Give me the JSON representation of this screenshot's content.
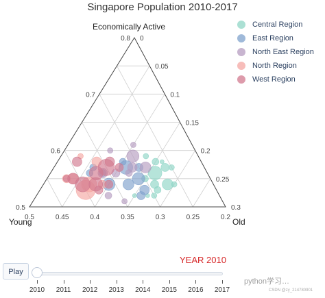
{
  "chart_data": {
    "type": "ternary-scatter",
    "title": "Singapore Population 2010-2017",
    "axis_a_title": "Economically Active",
    "axis_b_title": "Young",
    "axis_c_title": "Old",
    "axis_a_ticks": [
      "0.5",
      "0.6",
      "0.7",
      "0.8"
    ],
    "axis_b_ticks": [
      "0.5",
      "0.45",
      "0.4",
      "0.35",
      "0.3",
      "0.25",
      "0.2"
    ],
    "axis_c_ticks": [
      "0",
      "0.05",
      "0.1",
      "0.15",
      "0.2",
      "0.25",
      "0.3"
    ],
    "axis_ranges": {
      "economically_active": [
        0.5,
        0.8
      ],
      "young": [
        0.2,
        0.5
      ],
      "old": [
        0,
        0.3
      ]
    },
    "grid": true,
    "legend_position": "top-right",
    "series": [
      {
        "name": "Central Region",
        "color": "#8fd5c6",
        "points": [
          {
            "b": 0.28,
            "c": 0.16,
            "size": 10
          },
          {
            "b": 0.27,
            "c": 0.19,
            "size": 8
          },
          {
            "b": 0.29,
            "c": 0.17,
            "size": 6
          },
          {
            "b": 0.26,
            "c": 0.17,
            "size": 6
          },
          {
            "b": 0.3,
            "c": 0.15,
            "size": 5
          },
          {
            "b": 0.27,
            "c": 0.15,
            "size": 5
          },
          {
            "b": 0.28,
            "c": 0.13,
            "size": 4
          },
          {
            "b": 0.25,
            "c": 0.18,
            "size": 4
          },
          {
            "b": 0.29,
            "c": 0.18,
            "size": 5
          },
          {
            "b": 0.26,
            "c": 0.2,
            "size": 4
          },
          {
            "b": 0.3,
            "c": 0.18,
            "size": 4
          },
          {
            "b": 0.33,
            "c": 0.15,
            "size": 3
          },
          {
            "b": 0.26,
            "c": 0.16,
            "size": 3
          },
          {
            "b": 0.31,
            "c": 0.17,
            "size": 3
          }
        ]
      },
      {
        "name": "East Region",
        "color": "#7fa1cc",
        "points": [
          {
            "b": 0.32,
            "c": 0.11,
            "size": 10
          },
          {
            "b": 0.31,
            "c": 0.14,
            "size": 9
          },
          {
            "b": 0.36,
            "c": 0.1,
            "size": 9
          },
          {
            "b": 0.33,
            "c": 0.13,
            "size": 8
          },
          {
            "b": 0.31,
            "c": 0.16,
            "size": 7
          },
          {
            "b": 0.3,
            "c": 0.13,
            "size": 6
          },
          {
            "b": 0.32,
            "c": 0.16,
            "size": 6
          },
          {
            "b": 0.37,
            "c": 0.06,
            "size": 5
          },
          {
            "b": 0.38,
            "c": 0.06,
            "size": 5
          },
          {
            "b": 0.32,
            "c": 0.1,
            "size": 5
          },
          {
            "b": 0.36,
            "c": 0.08,
            "size": 5
          }
        ]
      },
      {
        "name": "North East Region",
        "color": "#b59cc0",
        "points": [
          {
            "b": 0.3,
            "c": 0.11,
            "size": 9
          },
          {
            "b": 0.29,
            "c": 0.14,
            "size": 8
          },
          {
            "b": 0.36,
            "c": 0.08,
            "size": 7
          },
          {
            "b": 0.31,
            "c": 0.12,
            "size": 7
          },
          {
            "b": 0.34,
            "c": 0.1,
            "size": 6
          },
          {
            "b": 0.37,
            "c": 0.11,
            "size": 5
          },
          {
            "b": 0.32,
            "c": 0.12,
            "size": 5
          },
          {
            "b": 0.35,
            "c": 0.14,
            "size": 4
          },
          {
            "b": 0.29,
            "c": 0.1,
            "size": 4
          },
          {
            "b": 0.33,
            "c": 0.07,
            "size": 4
          }
        ]
      },
      {
        "name": "North Region",
        "color": "#f4a7a3",
        "points": [
          {
            "b": 0.4,
            "c": 0.07,
            "size": 14
          },
          {
            "b": 0.39,
            "c": 0.07,
            "size": 11
          },
          {
            "b": 0.41,
            "c": 0.04,
            "size": 8
          },
          {
            "b": 0.36,
            "c": 0.06,
            "size": 7
          },
          {
            "b": 0.42,
            "c": 0.03,
            "size": 6
          },
          {
            "b": 0.37,
            "c": 0.09,
            "size": 6
          },
          {
            "b": 0.38,
            "c": 0.03,
            "size": 4
          }
        ]
      },
      {
        "name": "West Region",
        "color": "#d17a8f",
        "points": [
          {
            "b": 0.35,
            "c": 0.08,
            "size": 12
          },
          {
            "b": 0.37,
            "c": 0.07,
            "size": 10
          },
          {
            "b": 0.38,
            "c": 0.08,
            "size": 10
          },
          {
            "b": 0.4,
            "c": 0.06,
            "size": 11
          },
          {
            "b": 0.41,
            "c": 0.04,
            "size": 8
          },
          {
            "b": 0.39,
            "c": 0.03,
            "size": 7
          },
          {
            "b": 0.34,
            "c": 0.08,
            "size": 7
          },
          {
            "b": 0.36,
            "c": 0.1,
            "size": 6
          },
          {
            "b": 0.33,
            "c": 0.1,
            "size": 6
          },
          {
            "b": 0.38,
            "c": 0.09,
            "size": 6
          },
          {
            "b": 0.42,
            "c": 0.03,
            "size": 5
          }
        ]
      }
    ]
  },
  "animation": {
    "year_label": "YEAR 2010",
    "play_label": "Play",
    "slider_steps": [
      "2010",
      "2011",
      "2012",
      "2013",
      "2014",
      "2015",
      "2016",
      "2017"
    ],
    "current_step": 0
  },
  "watermark": {
    "text": "python学习…",
    "subtext": "CSDN @zy_214780901"
  }
}
